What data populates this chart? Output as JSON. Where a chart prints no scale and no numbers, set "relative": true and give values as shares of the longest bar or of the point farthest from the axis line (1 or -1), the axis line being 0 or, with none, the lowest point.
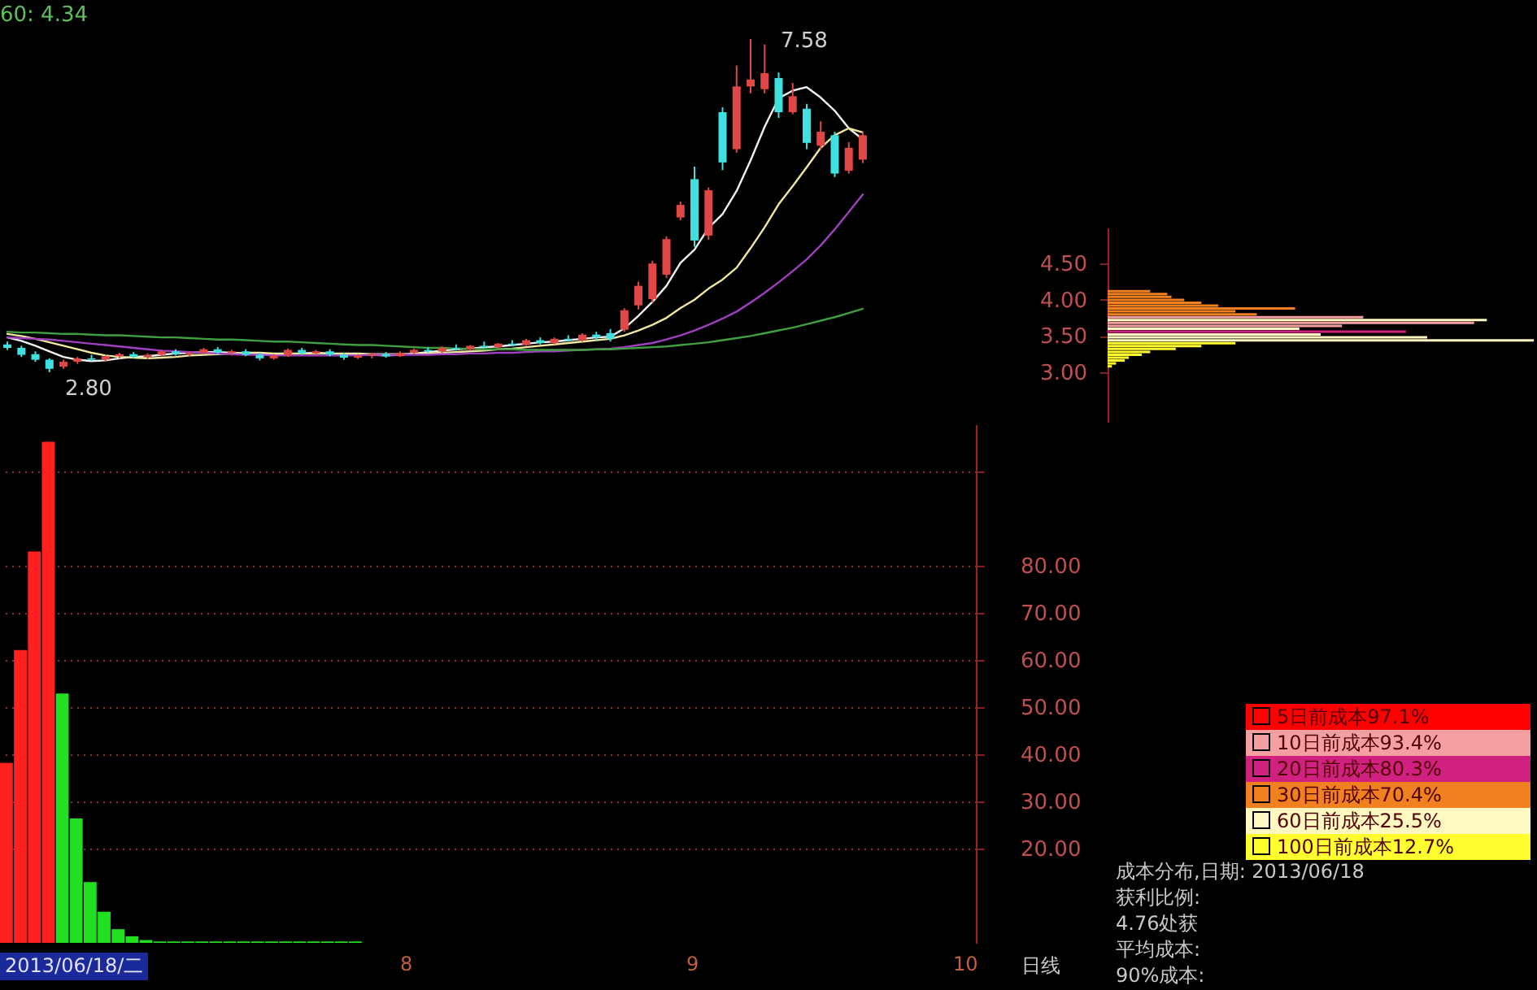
{
  "chart_data": [
    {
      "type": "candlestick",
      "categories": [
        null,
        null,
        null,
        null,
        null,
        null,
        null,
        null,
        null,
        null,
        null,
        null,
        null,
        null,
        null,
        null,
        null,
        null,
        null,
        null,
        null,
        null,
        null,
        null,
        null,
        null,
        null,
        null,
        null,
        null,
        null,
        null,
        null,
        null,
        null,
        null,
        null,
        null,
        null,
        null,
        null,
        null,
        null,
        null,
        null,
        null,
        null,
        null,
        null,
        null,
        null,
        null,
        null,
        null,
        null,
        null,
        null,
        null,
        null,
        null,
        null,
        null
      ],
      "ohlc": [
        [
          3.2,
          3.24,
          3.12,
          3.15
        ],
        [
          3.15,
          3.18,
          3.02,
          3.05
        ],
        [
          3.06,
          3.1,
          2.95,
          2.98
        ],
        [
          2.98,
          3.0,
          2.8,
          2.85
        ],
        [
          2.88,
          2.98,
          2.85,
          2.95
        ],
        [
          2.95,
          3.02,
          2.92,
          3.0
        ],
        [
          3.0,
          3.05,
          2.96,
          2.98
        ],
        [
          2.98,
          3.04,
          2.95,
          3.03
        ],
        [
          3.03,
          3.08,
          3.0,
          3.06
        ],
        [
          3.06,
          3.09,
          3.0,
          3.02
        ],
        [
          3.02,
          3.07,
          2.99,
          3.05
        ],
        [
          3.05,
          3.12,
          3.03,
          3.1
        ],
        [
          3.1,
          3.13,
          3.04,
          3.06
        ],
        [
          3.06,
          3.1,
          3.02,
          3.08
        ],
        [
          3.08,
          3.15,
          3.06,
          3.13
        ],
        [
          3.13,
          3.16,
          3.06,
          3.08
        ],
        [
          3.08,
          3.12,
          3.04,
          3.1
        ],
        [
          3.1,
          3.13,
          3.03,
          3.05
        ],
        [
          3.05,
          3.08,
          2.97,
          3.0
        ],
        [
          3.0,
          3.06,
          2.98,
          3.04
        ],
        [
          3.04,
          3.14,
          3.02,
          3.12
        ],
        [
          3.12,
          3.15,
          3.05,
          3.07
        ],
        [
          3.07,
          3.12,
          3.04,
          3.1
        ],
        [
          3.1,
          3.13,
          3.03,
          3.05
        ],
        [
          3.05,
          3.08,
          2.98,
          3.01
        ],
        [
          3.01,
          3.06,
          2.99,
          3.04
        ],
        [
          3.04,
          3.08,
          3.0,
          3.06
        ],
        [
          3.06,
          3.09,
          3.01,
          3.03
        ],
        [
          3.03,
          3.1,
          3.02,
          3.08
        ],
        [
          3.08,
          3.14,
          3.05,
          3.12
        ],
        [
          3.12,
          3.16,
          3.08,
          3.1
        ],
        [
          3.1,
          3.17,
          3.08,
          3.15
        ],
        [
          3.15,
          3.2,
          3.11,
          3.13
        ],
        [
          3.13,
          3.19,
          3.11,
          3.18
        ],
        [
          3.18,
          3.24,
          3.14,
          3.16
        ],
        [
          3.16,
          3.22,
          3.14,
          3.21
        ],
        [
          3.21,
          3.26,
          3.17,
          3.19
        ],
        [
          3.19,
          3.28,
          3.18,
          3.26
        ],
        [
          3.26,
          3.3,
          3.2,
          3.22
        ],
        [
          3.22,
          3.3,
          3.2,
          3.28
        ],
        [
          3.28,
          3.33,
          3.24,
          3.26
        ],
        [
          3.26,
          3.36,
          3.24,
          3.34
        ],
        [
          3.34,
          3.38,
          3.26,
          3.3
        ],
        [
          3.36,
          3.42,
          3.24,
          3.28
        ],
        [
          3.41,
          3.72,
          3.38,
          3.69
        ],
        [
          3.76,
          4.1,
          3.7,
          4.04
        ],
        [
          3.85,
          4.4,
          3.8,
          4.36
        ],
        [
          4.2,
          4.75,
          4.15,
          4.71
        ],
        [
          5.02,
          5.25,
          4.98,
          5.2
        ],
        [
          5.57,
          5.75,
          4.6,
          4.69
        ],
        [
          4.76,
          5.45,
          4.7,
          5.41
        ],
        [
          6.53,
          6.6,
          5.7,
          5.81
        ],
        [
          6.0,
          7.2,
          5.95,
          6.9
        ],
        [
          6.9,
          7.58,
          6.8,
          7.0
        ],
        [
          6.86,
          7.5,
          6.8,
          7.09
        ],
        [
          7.02,
          7.1,
          6.45,
          6.53
        ],
        [
          6.53,
          6.95,
          6.5,
          6.76
        ],
        [
          6.58,
          6.65,
          6.0,
          6.09
        ],
        [
          6.05,
          6.4,
          6.0,
          6.25
        ],
        [
          6.2,
          6.25,
          5.6,
          5.65
        ],
        [
          5.69,
          6.1,
          5.65,
          6.02
        ],
        [
          5.85,
          6.25,
          5.8,
          6.2
        ]
      ],
      "colors": [
        "#40e0e0",
        "#40e0e0",
        "#40e0e0",
        "#40e0e0",
        "#e04848",
        "#e04848",
        "#40e0e0",
        "#e04848",
        "#e04848",
        "#40e0e0",
        "#e04848",
        "#e04848",
        "#40e0e0",
        "#e04848",
        "#e04848",
        "#40e0e0",
        "#e04848",
        "#40e0e0",
        "#40e0e0",
        "#e04848",
        "#e04848",
        "#40e0e0",
        "#e04848",
        "#40e0e0",
        "#40e0e0",
        "#e04848",
        "#e04848",
        "#40e0e0",
        "#e04848",
        "#e04848",
        "#40e0e0",
        "#e04848",
        "#40e0e0",
        "#e04848",
        "#40e0e0",
        "#e04848",
        "#40e0e0",
        "#e04848",
        "#40e0e0",
        "#e04848",
        "#40e0e0",
        "#e04848",
        "#40e0e0",
        "#40e0e0",
        "#e04848",
        "#e04848",
        "#e04848",
        "#e04848",
        "#e04848",
        "#40e0e0",
        "#e04848",
        "#40e0e0",
        "#e04848",
        "#e04848",
        "#e04848",
        "#40e0e0",
        "#e04848",
        "#40e0e0",
        "#e04848",
        "#40e0e0",
        "#e04848",
        "#e04848"
      ],
      "tick_labels": false,
      "annotations": [
        "60: 4.34",
        "7.58",
        "2.80"
      ],
      "series": [
        {
          "type": "line",
          "color": "#f0f0f0",
          "values": [
            3.3,
            3.25,
            3.18,
            3.1,
            3.02,
            2.98,
            2.96,
            2.97,
            3.0,
            3.02,
            3.03,
            3.05,
            3.07,
            3.08,
            3.09,
            3.09,
            3.08,
            3.07,
            3.06,
            3.05,
            3.06,
            3.07,
            3.08,
            3.07,
            3.06,
            3.05,
            3.05,
            3.04,
            3.05,
            3.07,
            3.09,
            3.11,
            3.13,
            3.14,
            3.16,
            3.17,
            3.19,
            3.21,
            3.23,
            3.24,
            3.26,
            3.28,
            3.3,
            3.31,
            3.43,
            3.61,
            3.81,
            4.04,
            4.37,
            4.56,
            4.87,
            5.07,
            5.4,
            5.84,
            6.32,
            6.73,
            6.84,
            6.89,
            6.74,
            6.55,
            6.3,
            6.14
          ]
        },
        {
          "type": "line",
          "color": "#f0e8a0",
          "values": [
            3.35,
            3.32,
            3.28,
            3.23,
            3.18,
            3.13,
            3.08,
            3.04,
            3.02,
            3.01,
            3.0,
            3.01,
            3.02,
            3.04,
            3.05,
            3.06,
            3.07,
            3.08,
            3.08,
            3.07,
            3.07,
            3.07,
            3.07,
            3.07,
            3.07,
            3.07,
            3.06,
            3.06,
            3.06,
            3.06,
            3.07,
            3.08,
            3.09,
            3.1,
            3.11,
            3.13,
            3.14,
            3.16,
            3.18,
            3.2,
            3.22,
            3.24,
            3.26,
            3.28,
            3.33,
            3.4,
            3.48,
            3.58,
            3.72,
            3.84,
            4.0,
            4.13,
            4.3,
            4.58,
            4.88,
            5.21,
            5.47,
            5.74,
            6.02,
            6.2,
            6.3,
            6.24
          ]
        },
        {
          "type": "line",
          "color": "#a040c0",
          "values": [
            3.3,
            3.29,
            3.28,
            3.27,
            3.25,
            3.23,
            3.21,
            3.19,
            3.17,
            3.15,
            3.13,
            3.11,
            3.1,
            3.09,
            3.08,
            3.07,
            3.06,
            3.05,
            3.05,
            3.04,
            3.04,
            3.04,
            3.04,
            3.04,
            3.04,
            3.04,
            3.05,
            3.05,
            3.05,
            3.05,
            3.05,
            3.06,
            3.06,
            3.07,
            3.07,
            3.08,
            3.08,
            3.09,
            3.1,
            3.1,
            3.11,
            3.12,
            3.13,
            3.14,
            3.16,
            3.19,
            3.22,
            3.27,
            3.33,
            3.4,
            3.48,
            3.57,
            3.67,
            3.8,
            3.94,
            4.09,
            4.25,
            4.42,
            4.62,
            4.85,
            5.1,
            5.35
          ]
        },
        {
          "type": "line",
          "color": "#40a040",
          "values": [
            3.38,
            3.37,
            3.37,
            3.36,
            3.35,
            3.35,
            3.34,
            3.33,
            3.33,
            3.32,
            3.31,
            3.3,
            3.3,
            3.29,
            3.28,
            3.27,
            3.27,
            3.26,
            3.25,
            3.24,
            3.24,
            3.23,
            3.22,
            3.21,
            3.2,
            3.19,
            3.19,
            3.18,
            3.17,
            3.16,
            3.15,
            3.15,
            3.14,
            3.14,
            3.13,
            3.13,
            3.13,
            3.12,
            3.12,
            3.12,
            3.12,
            3.12,
            3.13,
            3.13,
            3.14,
            3.15,
            3.16,
            3.17,
            3.19,
            3.21,
            3.23,
            3.26,
            3.29,
            3.32,
            3.36,
            3.4,
            3.44,
            3.49,
            3.54,
            3.59,
            3.65,
            3.71
          ]
        }
      ]
    },
    {
      "type": "bar",
      "orientation": "horizontal",
      "relative": true,
      "x": [
        4.12,
        4.08,
        4.04,
        4.0,
        3.96,
        3.92,
        3.88,
        3.84,
        3.8,
        3.76,
        3.72,
        3.68,
        3.64,
        3.6,
        3.56,
        3.52,
        3.48,
        3.44,
        3.4,
        3.36,
        3.32,
        3.28,
        3.24,
        3.2,
        3.16,
        3.12,
        3.08
      ],
      "ylim": [
        2.3,
        5.0
      ],
      "yticks": [
        {
          "value": 3,
          "label": "3.00"
        },
        {
          "value": 3.5,
          "label": "3.50"
        },
        {
          "value": 4,
          "label": "4.00"
        },
        {
          "value": 4.5,
          "label": "4.50"
        }
      ],
      "legend": "bottom right",
      "series": [
        {
          "name": "5日前成本97.1%",
          "color": "#ff0000",
          "values": [
            null,
            null,
            null,
            null,
            null,
            null,
            null,
            null,
            null,
            null,
            null,
            null,
            null,
            null,
            null,
            null,
            null,
            null,
            null,
            null,
            null,
            null,
            null,
            null,
            null,
            null,
            null
          ]
        },
        {
          "name": "10日前成本93.4%",
          "color": "#f4a0a0",
          "values": [
            null,
            null,
            null,
            null,
            null,
            null,
            null,
            null,
            null,
            0.6,
            null,
            0.86,
            0.55,
            null,
            null,
            null,
            null,
            null,
            null,
            null,
            null,
            null,
            null,
            null,
            null,
            null,
            null
          ]
        },
        {
          "name": "20日前成本80.3%",
          "color": "#d02080",
          "values": [
            null,
            null,
            null,
            null,
            null,
            null,
            null,
            null,
            null,
            null,
            null,
            null,
            null,
            null,
            0.7,
            null,
            null,
            null,
            null,
            null,
            null,
            null,
            null,
            null,
            null,
            null,
            null
          ]
        },
        {
          "name": "30日前成本70.4%",
          "color": "#f08020",
          "values": [
            0.1,
            0.14,
            0.15,
            0.18,
            0.22,
            0.26,
            0.44,
            0.3,
            0.35,
            null,
            null,
            null,
            null,
            null,
            null,
            null,
            null,
            null,
            null,
            null,
            null,
            null,
            null,
            null,
            null,
            null,
            null
          ]
        },
        {
          "name": "60日前成本25.5%",
          "color": "#fff8c0",
          "values": [
            null,
            null,
            null,
            null,
            null,
            null,
            null,
            null,
            null,
            null,
            0.89,
            null,
            null,
            0.45,
            null,
            0.5,
            0.75,
            1.0,
            null,
            null,
            null,
            null,
            null,
            null,
            null,
            null,
            null
          ]
        },
        {
          "name": "100日前成本12.7%",
          "color": "#ffff30",
          "values": [
            null,
            null,
            null,
            null,
            null,
            null,
            null,
            null,
            null,
            null,
            null,
            null,
            null,
            null,
            null,
            null,
            null,
            null,
            0.3,
            0.22,
            0.16,
            0.1,
            0.08,
            0.05,
            0.04,
            0.02,
            0.01
          ]
        }
      ],
      "annotations": [
        "成本分布,日期: 2013/06/18",
        "获利比例:",
        "4.76处获",
        "平均成本:",
        "90%成本:"
      ]
    },
    {
      "type": "bar",
      "categories": [
        null,
        null,
        null,
        null,
        null,
        null,
        null,
        null,
        null,
        null,
        null,
        null,
        null,
        null,
        null,
        null,
        null,
        null,
        null,
        null,
        null,
        null,
        null,
        null,
        null,
        null,
        null,
        null,
        null,
        null,
        null,
        null,
        null,
        null,
        null,
        null,
        null,
        null,
        null,
        null,
        null,
        null,
        null,
        null,
        null,
        null,
        null,
        null,
        null,
        null,
        null,
        null,
        null,
        null,
        null,
        null,
        null,
        null,
        null,
        null,
        null,
        null,
        null,
        null,
        null,
        null,
        null,
        null,
        null,
        null
      ],
      "values": [
        38.2,
        62.1,
        83.0,
        106.3,
        52.9,
        26.4,
        12.9,
        6.6,
        2.9,
        1.4,
        0.6,
        0.3,
        0.3,
        0.3,
        0.3,
        0.3,
        0.3,
        0.3,
        0.3,
        0.3,
        0.3,
        0.3,
        0.3,
        0.3,
        0.3,
        0.3,
        null,
        null,
        null,
        null,
        null,
        null,
        null,
        null,
        null,
        null,
        null,
        null,
        null,
        null,
        null,
        null,
        null,
        null,
        null,
        null,
        null,
        null,
        null,
        null,
        null,
        null,
        null,
        null,
        null,
        null,
        null,
        null,
        null,
        null,
        null,
        null,
        null,
        null,
        null,
        null,
        null,
        null,
        null,
        null
      ],
      "colors": [
        "#ff2020",
        "#ff2020",
        "#ff2020",
        "#ff2020",
        "#20e020",
        "#20e020",
        "#20e020",
        "#20e020",
        "#20e020",
        "#20e020",
        "#20e020",
        "#20e020",
        "#20e020",
        "#20e020",
        "#20e020",
        "#20e020",
        "#20e020",
        "#20e020",
        "#20e020",
        "#20e020",
        "#20e020",
        "#20e020",
        "#20e020",
        "#20e020",
        "#20e020",
        "#20e020",
        null,
        null,
        null,
        null,
        null,
        null,
        null,
        null,
        null,
        null,
        null,
        null,
        null,
        null,
        null,
        null,
        null,
        null,
        null,
        null,
        null,
        null,
        null,
        null,
        null,
        null,
        null,
        null,
        null,
        null,
        null,
        null,
        null,
        null,
        null,
        null,
        null,
        null,
        null,
        null,
        null,
        null,
        null,
        null
      ],
      "ylim": [
        0,
        110
      ],
      "yticks": [
        {
          "value": 20,
          "label": "20.00"
        },
        {
          "value": 30,
          "label": "30.00"
        },
        {
          "value": 40,
          "label": "40.00"
        },
        {
          "value": 50,
          "label": "50.00"
        },
        {
          "value": 60,
          "label": "60.00"
        },
        {
          "value": 70,
          "label": "70.00"
        },
        {
          "value": 80,
          "label": "80.00"
        },
        {
          "value": 100,
          "label": null
        }
      ],
      "grid": "y",
      "annotations": [
        "2013/06/18/二",
        "8",
        "9",
        "10",
        "日线"
      ]
    }
  ]
}
